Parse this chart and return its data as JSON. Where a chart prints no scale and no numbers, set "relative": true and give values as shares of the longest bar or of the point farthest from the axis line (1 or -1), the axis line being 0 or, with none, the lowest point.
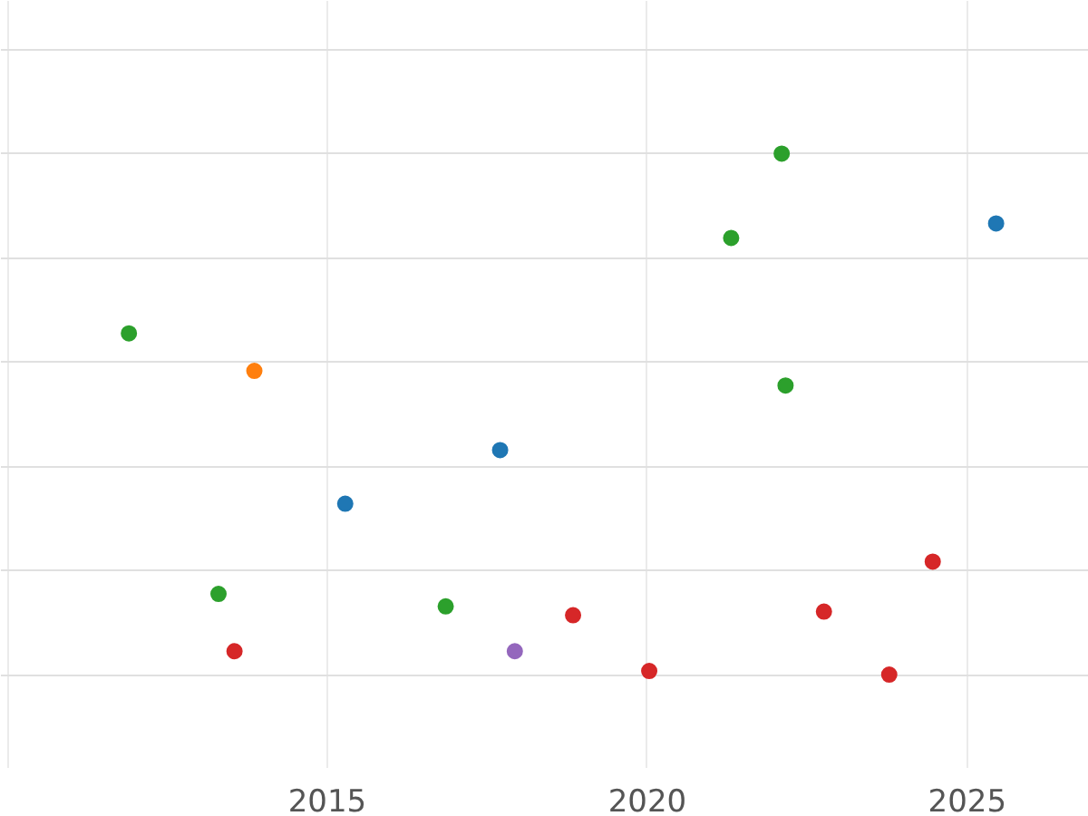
{
  "chart_data": {
    "type": "scatter",
    "relative": true,
    "grid": true,
    "marker": "circle",
    "tick_labels": "x",
    "xlim": [
      2009.9,
      2026.9
    ],
    "xticks": [
      {
        "value": 2010,
        "label": null
      },
      2015,
      2020,
      2025
    ],
    "series": [
      {
        "color": "#2ca02c",
        "x": [
          2011.9,
          2013.3,
          2016.85,
          2021.31,
          2022.1,
          2022.16
        ],
        "values": [
          0.655,
          0.155,
          0.131,
          0.838,
          1,
          0.555
        ]
      },
      {
        "color": "#ff7f0e",
        "x": [
          2013.86
        ],
        "values": [
          0.583
        ]
      },
      {
        "color": "#1f77b4",
        "x": [
          2015.28,
          2017.7,
          2025.45
        ],
        "values": [
          0.328,
          0.431,
          0.866
        ]
      },
      {
        "color": "#d62728",
        "x": [
          2013.55,
          2018.84,
          2020.03,
          2022.76,
          2023.78,
          2024.46
        ],
        "values": [
          0.045,
          0.114,
          0.007,
          0.121,
          0,
          0.217
        ]
      },
      {
        "color": "#9467bd",
        "x": [
          2017.93
        ],
        "values": [
          0.045
        ]
      }
    ]
  }
}
